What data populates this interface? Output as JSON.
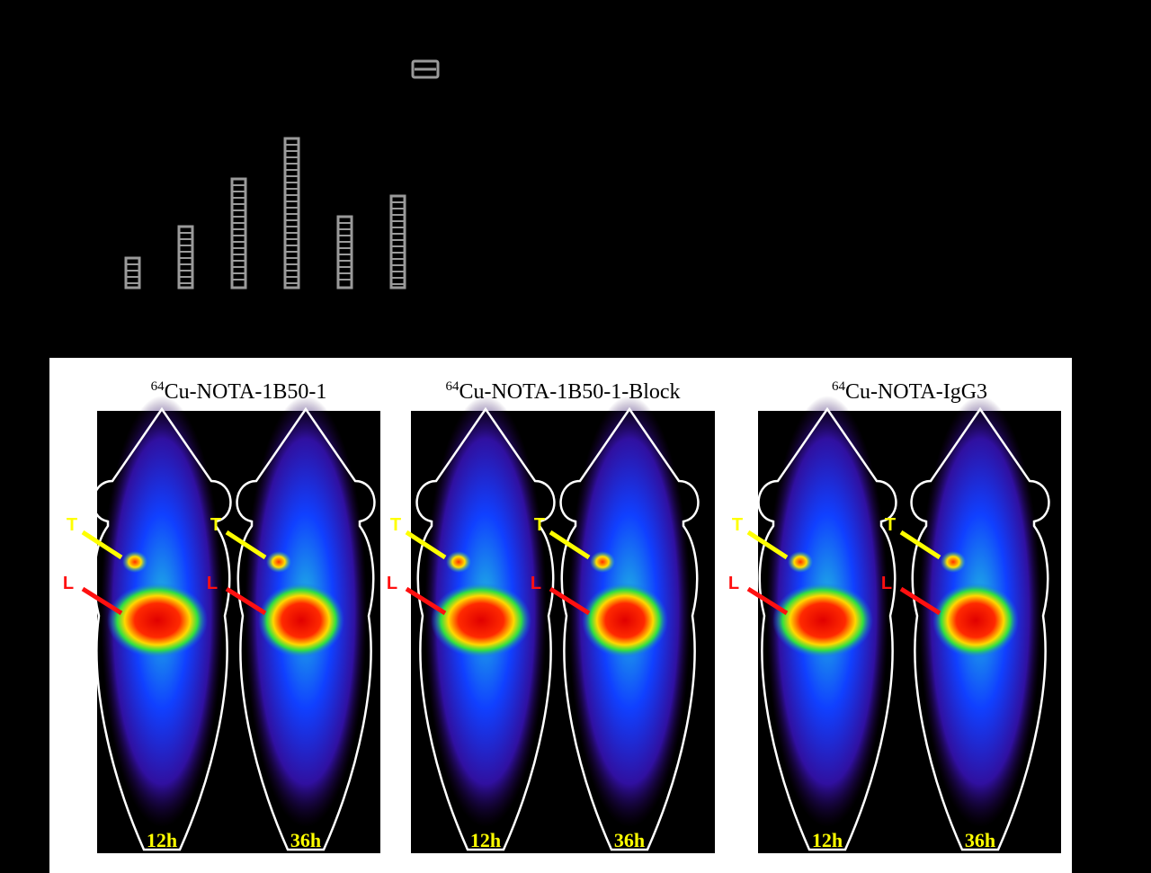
{
  "chart_data": {
    "type": "bar",
    "values": [
      33,
      68,
      121,
      166,
      79,
      102
    ],
    "color": "#9a9a9a",
    "ylim": [
      0,
      200
    ]
  },
  "figure": {
    "panels": [
      {
        "title_sup": "64",
        "title": "Cu-NOTA-1B50-1",
        "times": [
          "12h",
          "36h"
        ]
      },
      {
        "title_sup": "64",
        "title": "Cu-NOTA-1B50-1-Block",
        "times": [
          "12h",
          "36h"
        ]
      },
      {
        "title_sup": "64",
        "title": "Cu-NOTA-IgG3",
        "times": [
          "12h",
          "36h"
        ]
      }
    ],
    "tumor_label": "T",
    "liver_label": "L"
  }
}
